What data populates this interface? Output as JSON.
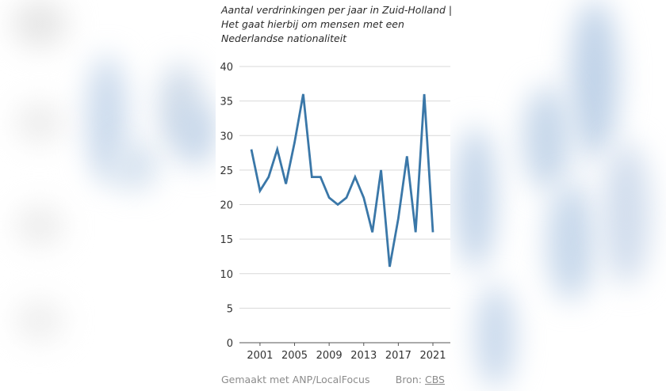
{
  "title_lines": [
    "Aantal verdrinkingen per jaar in Zuid-Holland |",
    "Het gaat hierbij om mensen met een",
    "Nederlandse nationaliteit"
  ],
  "footer": {
    "made_with": "Gemaakt met ANP/LocalFocus",
    "source_label": "Bron:",
    "source_link": "CBS"
  },
  "chart_data": {
    "type": "line",
    "title": "Aantal verdrinkingen per jaar in Zuid-Holland | Het gaat hierbij om mensen met een Nederlandse nationaliteit",
    "xlabel": "",
    "ylabel": "",
    "x": [
      2000,
      2001,
      2002,
      2003,
      2004,
      2005,
      2006,
      2007,
      2008,
      2009,
      2010,
      2011,
      2012,
      2013,
      2014,
      2015,
      2016,
      2017,
      2018,
      2019,
      2020,
      2021
    ],
    "series": [
      {
        "values": [
          28,
          22,
          24,
          28,
          23,
          29,
          36,
          24,
          24,
          21,
          20,
          21,
          24,
          21,
          16,
          25,
          11,
          18,
          27,
          16,
          36,
          16
        ],
        "color": "#3a77a8"
      }
    ],
    "xticks": [
      "2001",
      "2005",
      "2009",
      "2013",
      "2017",
      "2021"
    ],
    "yticks": [
      "0",
      "5",
      "10",
      "15",
      "20",
      "25",
      "30",
      "35",
      "40"
    ],
    "ylim": [
      0,
      40
    ],
    "grid": true,
    "gridline_color": "#d9d9d9"
  }
}
